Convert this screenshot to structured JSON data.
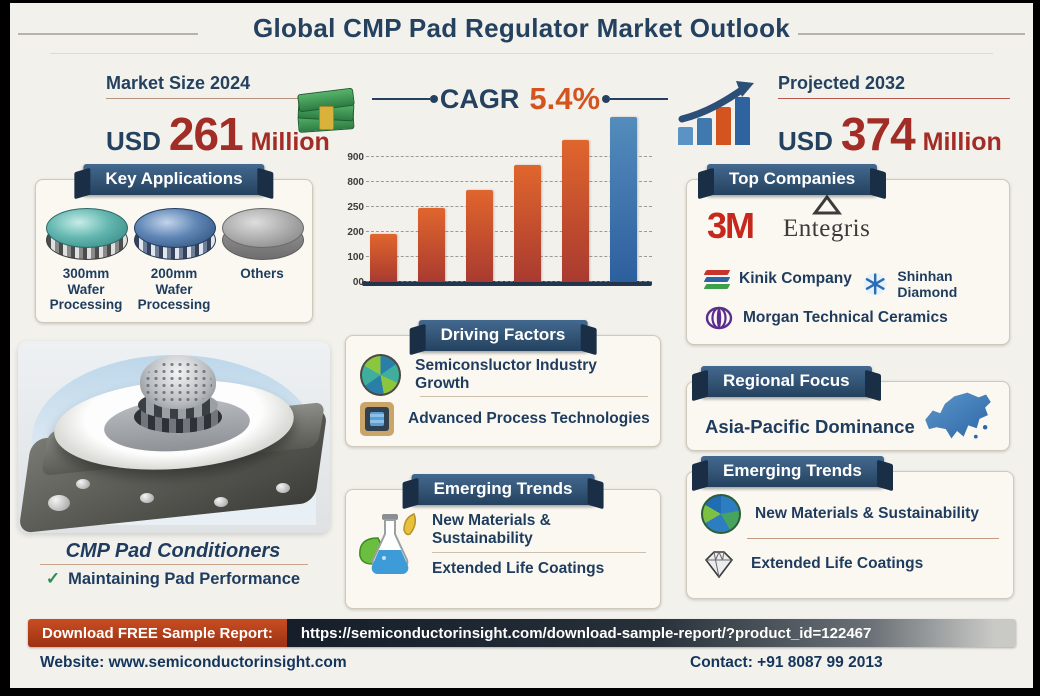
{
  "title": "Global CMP Pad Regulator Market Outlook",
  "stats": {
    "market_size": {
      "label": "Market Size 2024",
      "currency": "USD",
      "value": "261",
      "unit": "Million",
      "icon": "money-stack-icon"
    },
    "cagr": {
      "label": "CAGR",
      "value": "5.4%"
    },
    "projected": {
      "label": "Projected 2032",
      "currency": "USD",
      "value": "374",
      "unit": "Million",
      "icon": "growth-chart-icon"
    }
  },
  "chart_data": {
    "type": "bar",
    "title": "",
    "xlabel": "",
    "ylabel": "",
    "categories": [
      "",
      "",
      "",
      "",
      "",
      ""
    ],
    "values": [
      29,
      45,
      56,
      71,
      86,
      100
    ],
    "values_note": "bar heights as percent of tallest bar; no x-axis labels printed in image",
    "yticks_bottom_to_top": [
      "00",
      "100",
      "200",
      "250",
      "800",
      "900"
    ],
    "grid": "dashed horizontal gridlines",
    "legend": "none",
    "bar_gradients": [
      [
        "#e0662d",
        "#a93a30"
      ],
      [
        "#e0662d",
        "#a93a30"
      ],
      [
        "#e0662d",
        "#a93a30"
      ],
      [
        "#e0662d",
        "#a93a30"
      ],
      [
        "#e0662d",
        "#a93a30"
      ],
      [
        "#548cbc",
        "#2d5f9e"
      ]
    ]
  },
  "key_applications": {
    "header": "Key Applications",
    "items": [
      {
        "label": "300mm Wafer Processing",
        "icon": "wafer-teal-icon"
      },
      {
        "label": "200mm Wafer Processing",
        "icon": "wafer-blue-icon"
      },
      {
        "label": "Others",
        "icon": "wafer-gray-icon"
      }
    ]
  },
  "product": {
    "title": "CMP Pad Conditioners",
    "check": "✓",
    "note": "Maintaining Pad Performance"
  },
  "driving_factors": {
    "header": "Driving Factors",
    "items": [
      {
        "label": "Semiconsluctor Industry Growth",
        "icon": "wafer-globe-icon"
      },
      {
        "label": "Advanced Process Technologies",
        "icon": "chip-icon"
      }
    ]
  },
  "emerging_trends_center": {
    "header": "Emerging Trends",
    "icon": "flask-leaves-icon",
    "items": [
      {
        "label": "New Materials & Sustainability"
      },
      {
        "label": "Extended Life Coatings"
      }
    ]
  },
  "top_companies": {
    "header": "Top Companies",
    "companies": [
      {
        "name": "3M"
      },
      {
        "name": "Entegris"
      },
      {
        "name": "Kinik Company"
      },
      {
        "name": "Shinhan Diamond"
      },
      {
        "name": "Morgan Technical Ceramics"
      }
    ]
  },
  "regional_focus": {
    "header": "Regional Focus",
    "text": "Asia-Pacific Dominance",
    "icon": "asia-map-icon"
  },
  "emerging_trends_right": {
    "header": "Emerging Trends",
    "items": [
      {
        "label": "New Materials & Sustainability",
        "icon": "globe-leaf-icon"
      },
      {
        "label": "Extended Life Coatings",
        "icon": "diamond-icon"
      }
    ]
  },
  "footer": {
    "download_label": "Download FREE Sample Report:",
    "download_url": "https://semiconductorinsight.com/download-sample-report/?product_id=122467",
    "website_label": "Website:",
    "website_value": "www.semiconductorinsight.com",
    "contact_label": "Contact:",
    "contact_value": "+91 8087 99 2013"
  },
  "colors": {
    "background": "#f3f1ec",
    "navy_text": "#24415f",
    "dark_red_value": "#a22c26",
    "cagr_orange": "#d4541f",
    "ribbon_navy": "#2c4a68",
    "bar_orange": "#c9502a",
    "bar_blue": "#3f6fa8",
    "download_red": "#b5431f",
    "green_check": "#2e8b57"
  }
}
